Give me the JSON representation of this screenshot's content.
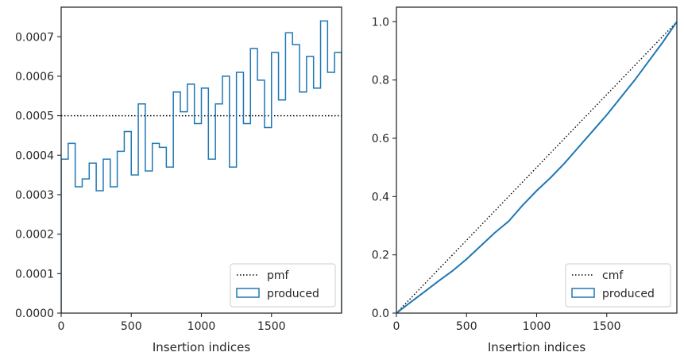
{
  "colors": {
    "series": "#1f77b4",
    "reference": "#000000",
    "axes": "#262626"
  },
  "chart_data": [
    {
      "type": "histogram-step",
      "xlabel": "Insertion indices",
      "ylabel": "",
      "xlim": [
        0,
        2000
      ],
      "ylim": [
        0,
        0.000775
      ],
      "xticks": [
        0,
        500,
        1000,
        1500
      ],
      "xtick_labels": [
        "0",
        "500",
        "1000",
        "1500"
      ],
      "yticks": [
        0,
        0.0001,
        0.0002,
        0.0003,
        0.0004,
        0.0005,
        0.0006,
        0.0007
      ],
      "ytick_labels": [
        "0.0000",
        "0.0001",
        "0.0002",
        "0.0003",
        "0.0004",
        "0.0005",
        "0.0006",
        "0.0007"
      ],
      "grid": false,
      "legend_position": "lower-right",
      "reference_line": {
        "name": "pmf",
        "value": 0.0005,
        "style": "dotted"
      },
      "series": [
        {
          "name": "produced",
          "bin_width": 50,
          "bin_start": 0,
          "values": [
            0.00039,
            0.00043,
            0.00032,
            0.00034,
            0.00038,
            0.00031,
            0.00039,
            0.00032,
            0.00041,
            0.00046,
            0.00035,
            0.00053,
            0.00036,
            0.00043,
            0.00042,
            0.00037,
            0.00056,
            0.00051,
            0.00058,
            0.00048,
            0.00057,
            0.00039,
            0.00053,
            0.0006,
            0.00037,
            0.00061,
            0.00048,
            0.00067,
            0.00059,
            0.00047,
            0.00066,
            0.00054,
            0.00071,
            0.00068,
            0.00056,
            0.00065,
            0.00057,
            0.00074,
            0.00061,
            0.00066
          ]
        }
      ]
    },
    {
      "type": "line",
      "xlabel": "Insertion indices",
      "ylabel": "",
      "xlim": [
        0,
        2000
      ],
      "ylim": [
        0,
        1.05
      ],
      "xticks": [
        0,
        500,
        1000,
        1500
      ],
      "xtick_labels": [
        "0",
        "500",
        "1000",
        "1500"
      ],
      "yticks": [
        0,
        0.2,
        0.4,
        0.6,
        0.8,
        1.0
      ],
      "ytick_labels": [
        "0.0",
        "0.2",
        "0.4",
        "0.6",
        "0.8",
        "1.0"
      ],
      "grid": false,
      "legend_position": "lower-right",
      "reference_line": {
        "name": "cmf",
        "x": [
          0,
          2000
        ],
        "y": [
          0,
          1.0
        ],
        "style": "dotted"
      },
      "series": [
        {
          "name": "produced",
          "x": [
            0,
            100,
            200,
            300,
            400,
            500,
            600,
            700,
            800,
            900,
            1000,
            1100,
            1200,
            1300,
            1400,
            1500,
            1600,
            1700,
            1800,
            1900,
            2000
          ],
          "y": [
            0,
            0.037,
            0.073,
            0.11,
            0.145,
            0.185,
            0.23,
            0.275,
            0.315,
            0.37,
            0.42,
            0.465,
            0.515,
            0.57,
            0.625,
            0.68,
            0.74,
            0.8,
            0.865,
            0.93,
            1.0
          ]
        }
      ]
    }
  ]
}
